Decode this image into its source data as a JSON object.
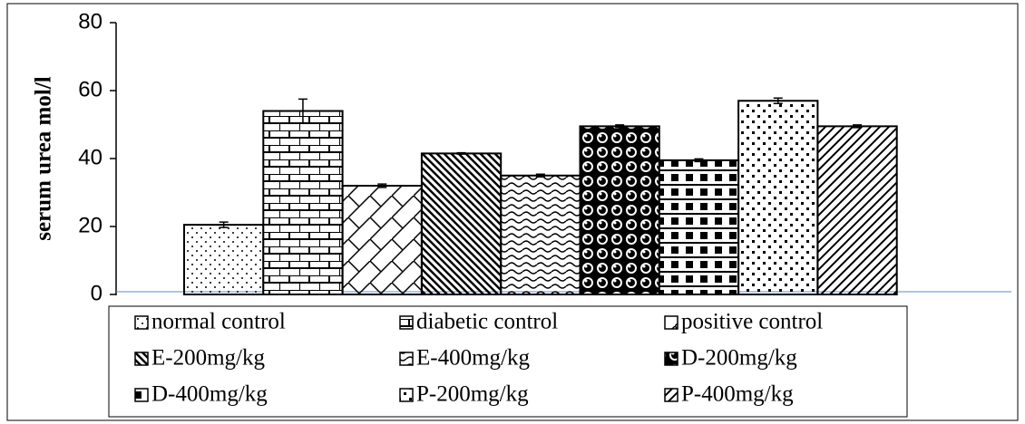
{
  "chart_data": {
    "type": "bar",
    "y_label": "serum urea mol/l",
    "categories": [
      "normal control",
      "diabetic control",
      "positive control",
      "E-200mg/kg",
      "E-400mg/kg",
      "D-200mg/kg",
      "D-400mg/kg",
      "P-200mg/kg",
      "P-400mg/kg"
    ],
    "values": [
      20.5,
      54,
      32,
      41.5,
      35,
      49.5,
      39.5,
      57,
      49.5
    ],
    "errors": [
      0.8,
      3.5,
      0.5,
      0.2,
      0.4,
      0.4,
      0.4,
      0.8,
      0.4
    ],
    "color": "#000000",
    "ylim": [
      0,
      80
    ],
    "yticks": [
      0,
      20,
      40,
      60,
      80
    ],
    "grid": false,
    "legend": "bottom"
  }
}
